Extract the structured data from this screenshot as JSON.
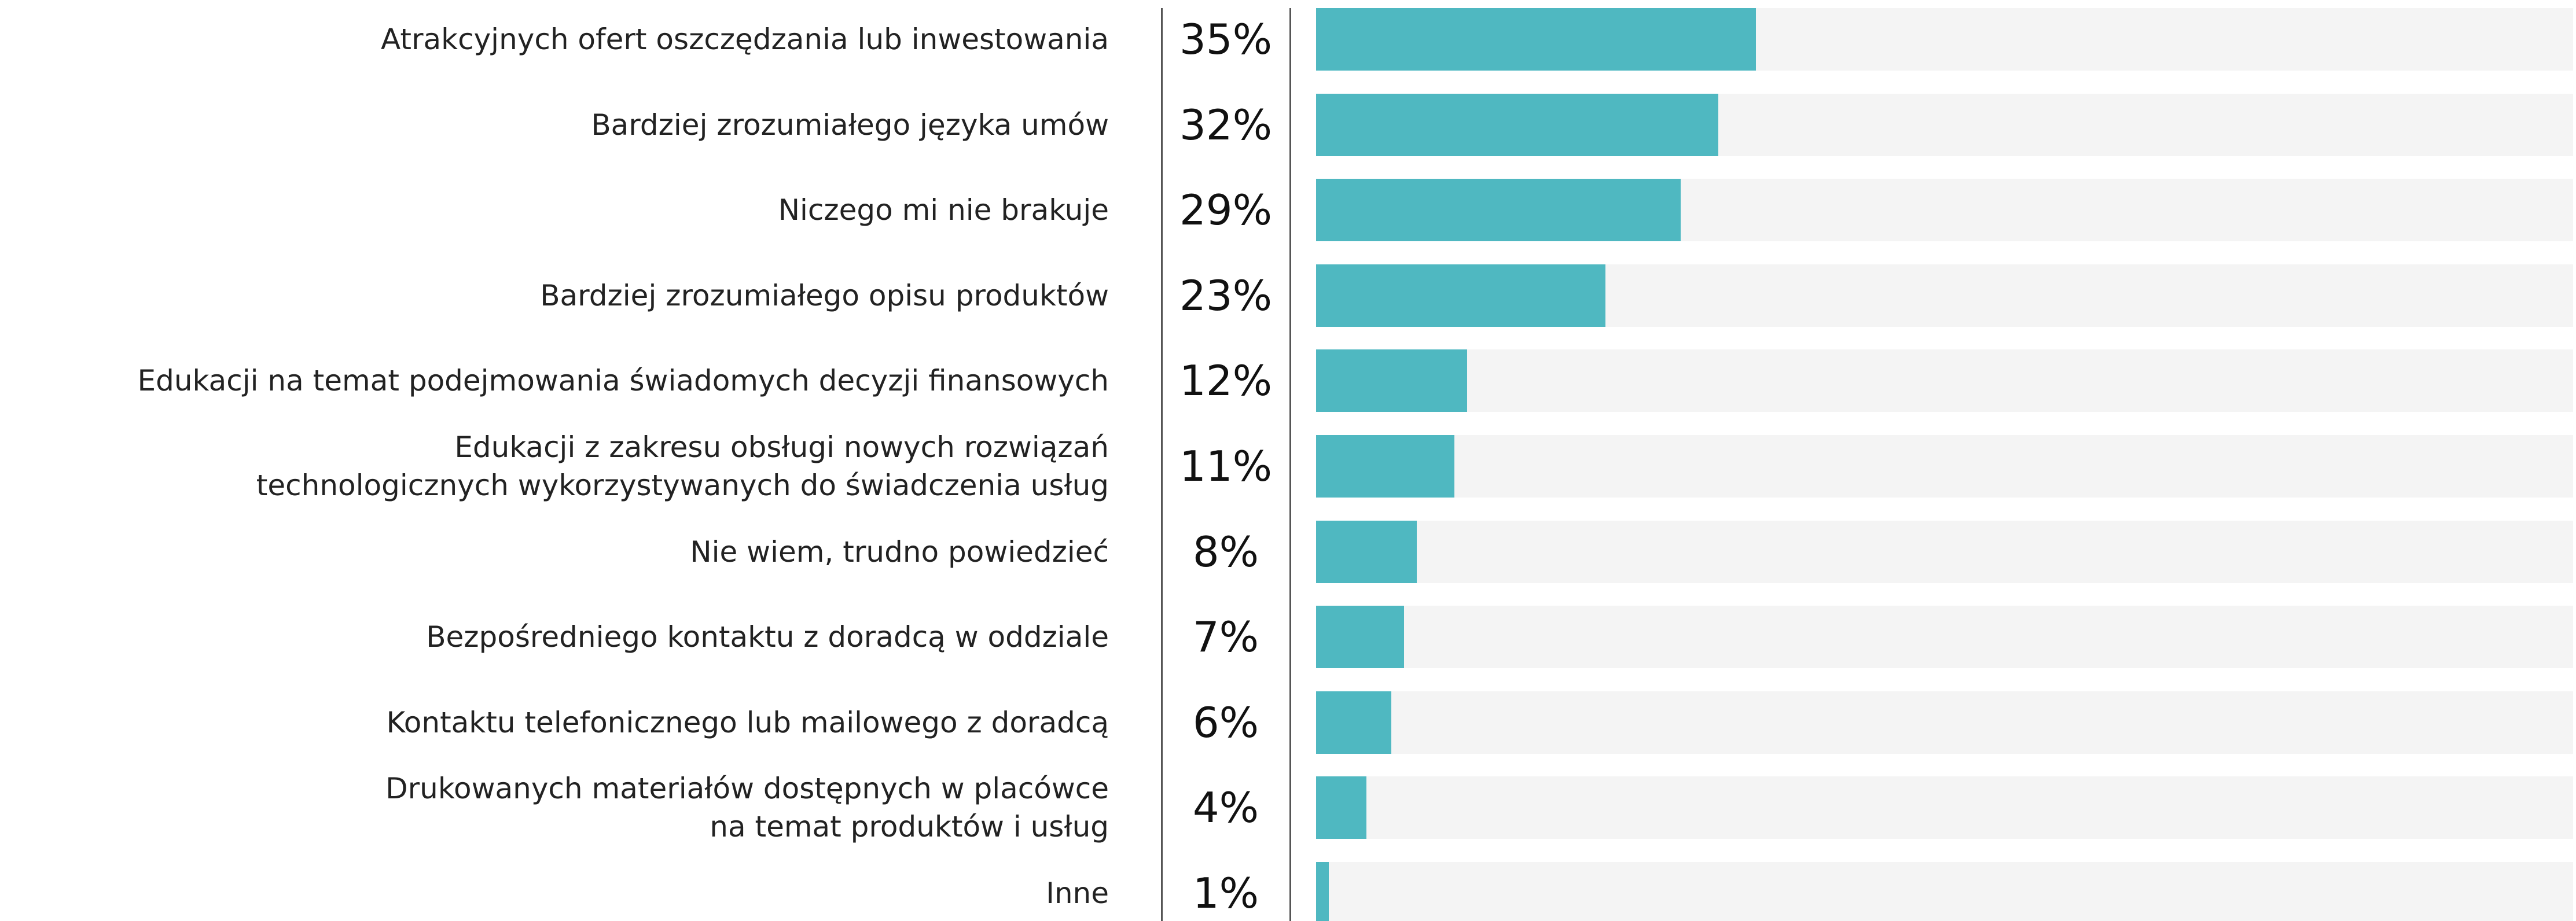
{
  "chart_data": {
    "type": "barh",
    "categories": [
      "Atrakcyjnych ofert oszczędzania lub inwestowania",
      "Bardziej zrozumiałego języka umów",
      "Niczego mi nie brakuje",
      "Bardziej zrozumiałego opisu produktów",
      "Edukacji na temat podejmowania świadomych decyzji finansowych",
      "Edukacji z zakresu obsługi nowych rozwiązań\ntechnologicznych wykorzystywanych do świadczenia usług",
      "Nie wiem, trudno powiedzieć",
      "Bezpośredniego kontaktu z doradcą w oddziale",
      "Kontaktu telefonicznego lub mailowego z doradcą",
      "Drukowanych materiałów dostępnych w placówce\nna temat produktów i usług",
      "Inne"
    ],
    "values": [
      35,
      32,
      29,
      23,
      12,
      11,
      8,
      7,
      6,
      4,
      1
    ],
    "value_labels": [
      "35%",
      "32%",
      "29%",
      "23%",
      "12%",
      "11%",
      "8%",
      "7%",
      "6%",
      "4%",
      "1%"
    ],
    "color": "#4fb8c1",
    "xlim": [
      0,
      100
    ]
  }
}
